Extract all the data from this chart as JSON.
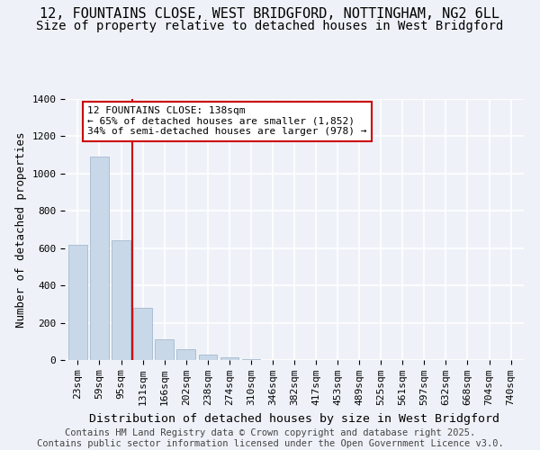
{
  "title_line1": "12, FOUNTAINS CLOSE, WEST BRIDGFORD, NOTTINGHAM, NG2 6LL",
  "title_line2": "Size of property relative to detached houses in West Bridgford",
  "xlabel": "Distribution of detached houses by size in West Bridgford",
  "ylabel": "Number of detached properties",
  "footer_line1": "Contains HM Land Registry data © Crown copyright and database right 2025.",
  "footer_line2": "Contains public sector information licensed under the Open Government Licence v3.0.",
  "bar_labels": [
    "23sqm",
    "59sqm",
    "95sqm",
    "131sqm",
    "166sqm",
    "202sqm",
    "238sqm",
    "274sqm",
    "310sqm",
    "346sqm",
    "382sqm",
    "417sqm",
    "453sqm",
    "489sqm",
    "525sqm",
    "561sqm",
    "597sqm",
    "632sqm",
    "668sqm",
    "704sqm",
    "740sqm"
  ],
  "bar_values": [
    620,
    1090,
    640,
    280,
    110,
    60,
    30,
    15,
    5,
    0,
    0,
    0,
    0,
    0,
    0,
    0,
    0,
    0,
    0,
    0,
    0
  ],
  "bar_color": "#c8d8e8",
  "bar_edge_color": "#9ab0c8",
  "background_color": "#eef2f8",
  "grid_color": "#ffffff",
  "vline_index": 3,
  "vline_color": "#cc0000",
  "annotation_text": "12 FOUNTAINS CLOSE: 138sqm\n← 65% of detached houses are smaller (1,852)\n34% of semi-detached houses are larger (978) →",
  "annotation_box_facecolor": "#ffffff",
  "annotation_box_edgecolor": "#cc0000",
  "ylim": [
    0,
    1400
  ],
  "yticks": [
    0,
    200,
    400,
    600,
    800,
    1000,
    1200,
    1400
  ],
  "title_fontsize": 11,
  "subtitle_fontsize": 10,
  "axis_label_fontsize": 9,
  "tick_fontsize": 8,
  "annotation_fontsize": 8,
  "footer_fontsize": 7.5
}
